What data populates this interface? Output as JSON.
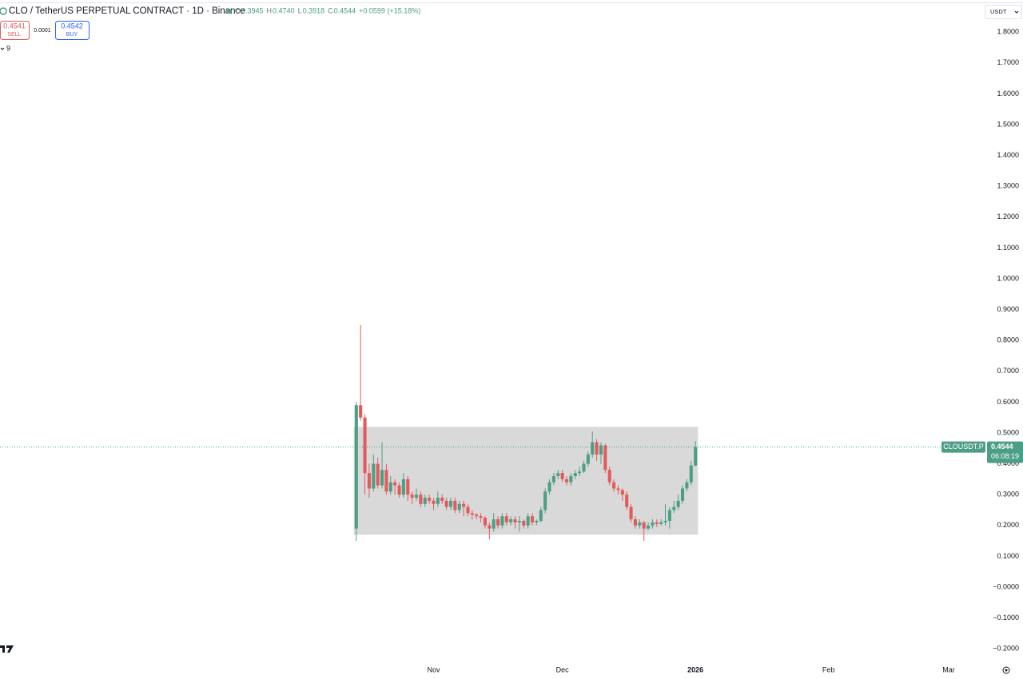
{
  "header": {
    "title": "CLO / TetherUS PERPETUAL CONTRACT · 1D · Binance",
    "ohlc": [
      {
        "key": "O",
        "value": "0.3945"
      },
      {
        "key": "H",
        "value": "0.4740"
      },
      {
        "key": "L",
        "value": "0.3918"
      },
      {
        "key": "C",
        "value": "0.4544"
      }
    ],
    "change": "+0.0599 (+15.18%)"
  },
  "trade": {
    "sell_price": "0.4541",
    "sell": "SELL",
    "spread": "0.0001",
    "buy_price": "0.4542",
    "buy": "BUY",
    "indicators": "9",
    "currency": "USDT"
  },
  "chart_data": {
    "type": "candlestick",
    "up_color": "#4d9e86",
    "down_color": "#e35a5a",
    "categories": [
      null,
      null,
      null,
      null,
      null,
      null,
      null,
      null,
      null,
      null,
      null,
      null,
      null,
      null,
      null,
      null,
      null,
      null,
      null,
      null,
      null,
      null,
      null,
      null,
      null,
      null,
      null,
      null,
      null,
      null,
      null,
      null,
      null,
      null,
      null,
      null,
      null,
      null,
      null,
      null,
      null,
      null,
      null,
      null,
      null,
      null,
      null,
      null,
      null,
      null,
      null,
      null,
      null,
      null,
      null,
      null,
      null,
      null,
      null,
      null,
      null,
      null,
      null,
      null,
      null,
      null,
      null,
      null,
      null,
      null,
      null,
      null,
      null,
      null,
      null,
      null,
      null,
      null,
      null,
      null
    ],
    "open": [
      0.19,
      0.59,
      0.55,
      0.37,
      0.32,
      0.4,
      0.33,
      0.38,
      0.31,
      0.34,
      0.33,
      0.3,
      0.35,
      0.3,
      0.29,
      0.3,
      0.27,
      0.29,
      0.28,
      0.27,
      0.29,
      0.28,
      0.26,
      0.28,
      0.25,
      0.27,
      0.26,
      0.24,
      0.235,
      0.23,
      0.225,
      0.2,
      0.19,
      0.22,
      0.2,
      0.23,
      0.21,
      0.22,
      0.21,
      0.215,
      0.2,
      0.23,
      0.21,
      0.215,
      0.25,
      0.31,
      0.34,
      0.36,
      0.37,
      0.35,
      0.34,
      0.36,
      0.37,
      0.375,
      0.4,
      0.43,
      0.47,
      0.43,
      0.46,
      0.38,
      0.34,
      0.32,
      0.315,
      0.3,
      0.26,
      0.22,
      0.2,
      0.21,
      0.19,
      0.2,
      0.21,
      0.205,
      0.21,
      0.215,
      0.25,
      0.26,
      0.28,
      0.32,
      0.34,
      0.3945
    ],
    "high": [
      0.6,
      0.85,
      0.56,
      0.4,
      0.43,
      0.42,
      0.47,
      0.4,
      0.36,
      0.35,
      0.34,
      0.37,
      0.36,
      0.31,
      0.32,
      0.31,
      0.3,
      0.3,
      0.29,
      0.31,
      0.3,
      0.29,
      0.29,
      0.29,
      0.28,
      0.28,
      0.27,
      0.25,
      0.24,
      0.24,
      0.23,
      0.21,
      0.24,
      0.23,
      0.24,
      0.24,
      0.23,
      0.23,
      0.23,
      0.22,
      0.24,
      0.24,
      0.22,
      0.26,
      0.32,
      0.35,
      0.37,
      0.38,
      0.38,
      0.36,
      0.37,
      0.38,
      0.39,
      0.41,
      0.44,
      0.505,
      0.48,
      0.47,
      0.465,
      0.39,
      0.35,
      0.33,
      0.32,
      0.31,
      0.27,
      0.23,
      0.22,
      0.215,
      0.21,
      0.22,
      0.22,
      0.22,
      0.27,
      0.26,
      0.28,
      0.3,
      0.33,
      0.35,
      0.41,
      0.474
    ],
    "low": [
      0.15,
      0.54,
      0.3,
      0.29,
      0.31,
      0.32,
      0.32,
      0.3,
      0.3,
      0.3,
      0.29,
      0.29,
      0.28,
      0.27,
      0.28,
      0.26,
      0.26,
      0.27,
      0.25,
      0.26,
      0.27,
      0.25,
      0.25,
      0.24,
      0.24,
      0.23,
      0.23,
      0.22,
      0.22,
      0.21,
      0.19,
      0.155,
      0.18,
      0.19,
      0.19,
      0.2,
      0.2,
      0.19,
      0.18,
      0.19,
      0.19,
      0.2,
      0.2,
      0.21,
      0.24,
      0.3,
      0.33,
      0.35,
      0.34,
      0.33,
      0.33,
      0.35,
      0.36,
      0.37,
      0.39,
      0.42,
      0.41,
      0.4,
      0.37,
      0.33,
      0.31,
      0.3,
      0.28,
      0.25,
      0.21,
      0.19,
      0.19,
      0.15,
      0.185,
      0.19,
      0.195,
      0.2,
      0.2,
      0.19,
      0.24,
      0.25,
      0.27,
      0.31,
      0.33,
      0.3918
    ],
    "close": [
      0.59,
      0.55,
      0.37,
      0.32,
      0.4,
      0.33,
      0.38,
      0.31,
      0.34,
      0.33,
      0.3,
      0.35,
      0.3,
      0.29,
      0.3,
      0.27,
      0.29,
      0.28,
      0.27,
      0.29,
      0.28,
      0.26,
      0.28,
      0.25,
      0.27,
      0.26,
      0.24,
      0.235,
      0.23,
      0.225,
      0.2,
      0.19,
      0.22,
      0.2,
      0.23,
      0.21,
      0.22,
      0.21,
      0.215,
      0.2,
      0.23,
      0.21,
      0.215,
      0.25,
      0.31,
      0.34,
      0.36,
      0.37,
      0.35,
      0.34,
      0.36,
      0.37,
      0.375,
      0.4,
      0.43,
      0.47,
      0.43,
      0.46,
      0.38,
      0.34,
      0.32,
      0.315,
      0.3,
      0.26,
      0.22,
      0.2,
      0.21,
      0.19,
      0.2,
      0.21,
      0.205,
      0.21,
      0.215,
      0.25,
      0.26,
      0.28,
      0.32,
      0.34,
      0.3945,
      0.4544
    ],
    "range_box": {
      "start": 0,
      "end": 79,
      "high": 0.52,
      "low": 0.17,
      "color": "#d9d9d9"
    },
    "last_price": {
      "symbol": "CLOUSDT.P",
      "value": 0.4544,
      "countdown": "06:08:19",
      "color": "#4d9e86"
    },
    "xlim": [
      -83,
      146
    ],
    "xticks": [
      {
        "value": 18,
        "label": "Nov"
      },
      {
        "value": 48,
        "label": "Dec"
      },
      {
        "value": 79,
        "label": "2026"
      },
      {
        "value": 110,
        "label": "Feb"
      },
      {
        "value": 138,
        "label": "Mar"
      }
    ],
    "ylim": [
      -0.241,
      1.837
    ],
    "yticks": [
      {
        "value": 1.8,
        "label": "1.8000"
      },
      {
        "value": 1.7,
        "label": "1.7000"
      },
      {
        "value": 1.6,
        "label": "1.6000"
      },
      {
        "value": 1.5,
        "label": "1.5000"
      },
      {
        "value": 1.4,
        "label": "1.4000"
      },
      {
        "value": 1.3,
        "label": "1.3000"
      },
      {
        "value": 1.2,
        "label": "1.2000"
      },
      {
        "value": 1.1,
        "label": "1.1000"
      },
      {
        "value": 1.0,
        "label": "1.0000"
      },
      {
        "value": 0.9,
        "label": "0.9000"
      },
      {
        "value": 0.8,
        "label": "0.8000"
      },
      {
        "value": 0.7,
        "label": "0.7000"
      },
      {
        "value": 0.6,
        "label": "0.6000"
      },
      {
        "value": 0.5,
        "label": "0.5000"
      },
      {
        "value": 0.4,
        "label": "0.4000"
      },
      {
        "value": 0.3,
        "label": "0.3000"
      },
      {
        "value": 0.2,
        "label": "0.2000"
      },
      {
        "value": 0.1,
        "label": "0.1000"
      },
      {
        "value": 0,
        "label": "−0.0000"
      },
      {
        "value": -0.1,
        "label": "−0.1000"
      },
      {
        "value": -0.2,
        "label": "−0.2000"
      }
    ],
    "grid": false
  }
}
